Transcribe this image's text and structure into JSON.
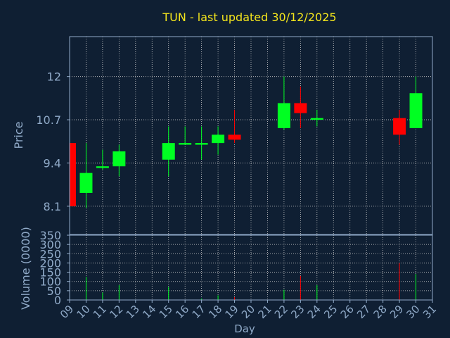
{
  "colors": {
    "background": "#0f1f33",
    "axis": "#90aac8",
    "grid": "#d0d0d0",
    "title": "#f5e61c",
    "up": "#00ff22",
    "down": "#ff0000",
    "wick_up": "#00ff22",
    "wick_down": "#ff0000"
  },
  "chart_data": [
    {
      "type": "candlestick",
      "title": "TUN - last updated 30/12/2025",
      "ylabel": "Price",
      "ylim": [
        7.25,
        13.2
      ],
      "yticks": [
        "8.1",
        "9.4",
        "10.7",
        "12"
      ],
      "ytick_values": [
        8.1,
        9.4,
        10.7,
        12
      ],
      "grid": true,
      "xlim": [
        9,
        31
      ],
      "candles": [
        {
          "x": 9,
          "open": 10.0,
          "high": 10.0,
          "low": 8.1,
          "close": 8.1
        },
        {
          "x": 10,
          "open": 8.5,
          "high": 10.0,
          "low": 8.05,
          "close": 9.1
        },
        {
          "x": 11,
          "open": 9.25,
          "high": 9.8,
          "low": 9.2,
          "close": 9.3
        },
        {
          "x": 12,
          "open": 9.3,
          "high": 9.95,
          "low": 9.0,
          "close": 9.75
        },
        {
          "x": 15,
          "open": 9.5,
          "high": 10.5,
          "low": 9.0,
          "close": 10.0
        },
        {
          "x": 16,
          "open": 9.95,
          "high": 10.5,
          "low": 9.95,
          "close": 10.0
        },
        {
          "x": 17,
          "open": 9.95,
          "high": 10.5,
          "low": 9.5,
          "close": 10.0
        },
        {
          "x": 18,
          "open": 10.0,
          "high": 10.5,
          "low": 9.65,
          "close": 10.25
        },
        {
          "x": 19,
          "open": 10.25,
          "high": 11.0,
          "low": 10.0,
          "close": 10.1
        },
        {
          "x": 22,
          "open": 10.45,
          "high": 12.0,
          "low": 10.4,
          "close": 11.2
        },
        {
          "x": 23,
          "open": 11.2,
          "high": 11.7,
          "low": 10.45,
          "close": 10.9
        },
        {
          "x": 24,
          "open": 10.7,
          "high": 11.0,
          "low": 10.5,
          "close": 10.75
        },
        {
          "x": 29,
          "open": 10.75,
          "high": 11.0,
          "low": 9.95,
          "close": 10.25
        },
        {
          "x": 30,
          "open": 10.45,
          "high": 12.0,
          "low": 10.45,
          "close": 11.5
        }
      ]
    },
    {
      "type": "bar",
      "ylabel": "Volume (0000)",
      "xlabel": "Day",
      "ylim": [
        0,
        350
      ],
      "yticks": [
        "0",
        "50",
        "100",
        "150",
        "200",
        "250",
        "300",
        "350"
      ],
      "ytick_values": [
        0,
        50,
        100,
        150,
        200,
        250,
        300,
        350
      ],
      "xticks": [
        "09",
        "10",
        "11",
        "12",
        "13",
        "14",
        "15",
        "16",
        "17",
        "18",
        "19",
        "20",
        "21",
        "22",
        "23",
        "24",
        "25",
        "26",
        "27",
        "28",
        "29",
        "30",
        "31"
      ],
      "xtick_values": [
        9,
        10,
        11,
        12,
        13,
        14,
        15,
        16,
        17,
        18,
        19,
        20,
        21,
        22,
        23,
        24,
        25,
        26,
        27,
        28,
        29,
        30,
        31
      ],
      "volumes": [
        {
          "x": 10,
          "value": 125,
          "dir": "up"
        },
        {
          "x": 11,
          "value": 40,
          "dir": "up"
        },
        {
          "x": 12,
          "value": 80,
          "dir": "up"
        },
        {
          "x": 15,
          "value": 70,
          "dir": "up"
        },
        {
          "x": 17,
          "value": 8,
          "dir": "up"
        },
        {
          "x": 18,
          "value": 25,
          "dir": "up"
        },
        {
          "x": 19,
          "value": 15,
          "dir": "down"
        },
        {
          "x": 22,
          "value": 55,
          "dir": "up"
        },
        {
          "x": 23,
          "value": 130,
          "dir": "down"
        },
        {
          "x": 24,
          "value": 80,
          "dir": "up"
        },
        {
          "x": 29,
          "value": 200,
          "dir": "down"
        },
        {
          "x": 30,
          "value": 140,
          "dir": "up"
        }
      ]
    }
  ]
}
